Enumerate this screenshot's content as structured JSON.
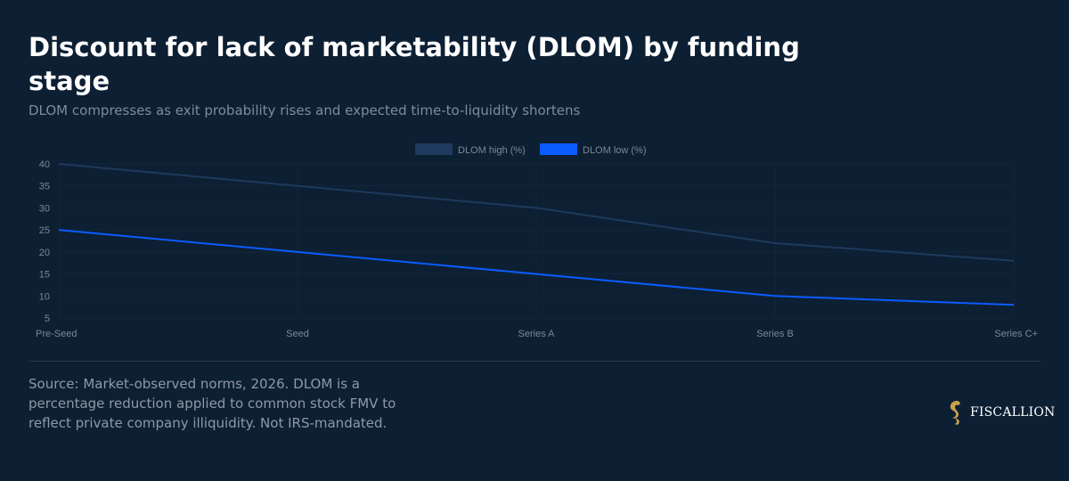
{
  "header": {
    "title": "Discount for lack of marketability (DLOM) by funding stage",
    "subtitle": "DLOM compresses as exit probability rises and expected time-to-liquidity shortens"
  },
  "chart_data": {
    "type": "line",
    "categories": [
      "Pre-Seed",
      "Seed",
      "Series A",
      "Series B",
      "Series C+"
    ],
    "series": [
      {
        "name": "DLOM high (%)",
        "values": [
          40,
          35,
          30,
          22,
          18
        ],
        "color": "#1e3a5c"
      },
      {
        "name": "DLOM low (%)",
        "values": [
          25,
          20,
          15,
          10,
          8
        ],
        "color": "#0a5cff"
      }
    ],
    "ylim": [
      5,
      40
    ],
    "yticks": [
      5,
      10,
      15,
      20,
      25,
      30,
      35,
      40
    ],
    "grid": true,
    "legend": "top-center"
  },
  "footer": {
    "source": "Source: Market-observed norms, 2026. DLOM is a percentage reduction applied to common stock FMV to reflect private company illiquidity. Not IRS-mandated.",
    "brand": "FISCALLION",
    "brand_icon": "seahorse-logo-icon",
    "brand_color": "#c9a24a"
  }
}
